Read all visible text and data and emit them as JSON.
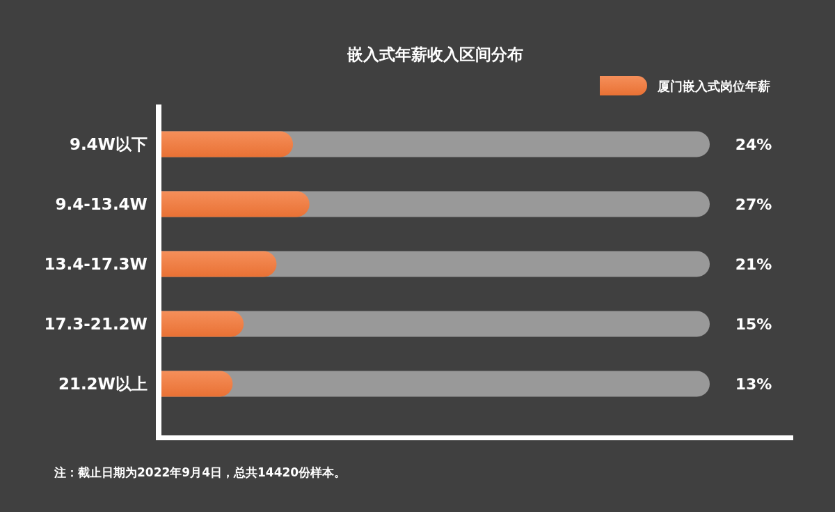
{
  "chart_data": {
    "type": "bar",
    "orientation": "horizontal",
    "title": "嵌入式年薪收入区间分布",
    "categories": [
      "9.4W以下",
      "9.4-13.4W",
      "13.4-17.3W",
      "17.3-21.2W",
      "21.2W以上"
    ],
    "series": [
      {
        "name": "厦门嵌入式岗位年薪",
        "color": "#f37636",
        "values": [
          24,
          27,
          21,
          15,
          13
        ],
        "value_labels": [
          "24%",
          "27%",
          "21%",
          "15%",
          "13%"
        ]
      }
    ],
    "xlim": [
      0,
      100
    ],
    "tick_labels": "y",
    "legend": "top right",
    "annotations": [
      "注：截止日期为2022年9月4日，总共14420份样本。"
    ]
  }
}
